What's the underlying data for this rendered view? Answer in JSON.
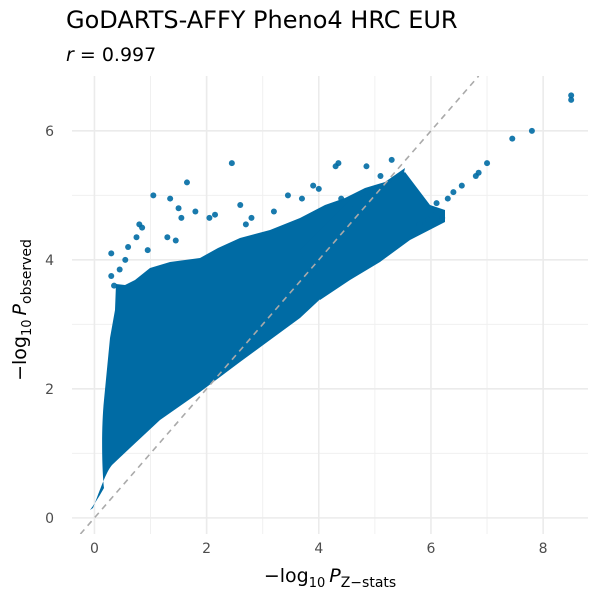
{
  "chart_data": {
    "type": "scatter",
    "title": "GoDARTS-AFFY Pheno4 HRC EUR",
    "subtitle": {
      "var": "r",
      "eq": " = ",
      "value": "0.997"
    },
    "xlabel": {
      "prefix": "−log",
      "base": "10",
      "var": "P",
      "sub": "Z−stats"
    },
    "ylabel": {
      "prefix": "−log",
      "base": "10",
      "var": "P",
      "sub": "observed"
    },
    "xlim": [
      -0.4,
      8.8
    ],
    "ylim": [
      -0.25,
      6.85
    ],
    "x_ticks": [
      0,
      2,
      4,
      6,
      8
    ],
    "y_ticks": [
      0,
      2,
      4,
      6
    ],
    "grid": true,
    "reference_line": {
      "type": "identity",
      "style": "dashed",
      "color": "#aaaaaa"
    },
    "point_color": "#006ba4",
    "series": [
      {
        "values": [
          {
            "x": 8.5,
            "y": 6.55
          },
          {
            "x": 8.5,
            "y": 6.48
          },
          {
            "x": 7.8,
            "y": 6.0
          },
          {
            "x": 7.45,
            "y": 5.88
          },
          {
            "x": 7.0,
            "y": 5.5
          },
          {
            "x": 6.85,
            "y": 5.35
          },
          {
            "x": 6.8,
            "y": 5.3
          },
          {
            "x": 6.55,
            "y": 5.15
          },
          {
            "x": 6.4,
            "y": 5.05
          },
          {
            "x": 6.3,
            "y": 4.95
          },
          {
            "x": 6.1,
            "y": 4.88
          },
          {
            "x": 6.0,
            "y": 4.75
          },
          {
            "x": 6.2,
            "y": 4.65
          },
          {
            "x": 5.95,
            "y": 4.62
          },
          {
            "x": 5.8,
            "y": 4.55
          },
          {
            "x": 2.45,
            "y": 5.5
          },
          {
            "x": 4.35,
            "y": 5.5
          },
          {
            "x": 4.3,
            "y": 5.45
          },
          {
            "x": 5.3,
            "y": 5.55
          },
          {
            "x": 4.85,
            "y": 5.45
          },
          {
            "x": 5.1,
            "y": 5.3
          },
          {
            "x": 1.05,
            "y": 5.0
          },
          {
            "x": 1.65,
            "y": 5.2
          },
          {
            "x": 1.8,
            "y": 4.75
          },
          {
            "x": 1.35,
            "y": 4.95
          },
          {
            "x": 1.5,
            "y": 4.8
          },
          {
            "x": 0.8,
            "y": 4.55
          },
          {
            "x": 0.85,
            "y": 4.5
          },
          {
            "x": 1.55,
            "y": 4.65
          },
          {
            "x": 2.15,
            "y": 4.7
          },
          {
            "x": 2.05,
            "y": 4.65
          },
          {
            "x": 3.45,
            "y": 5.0
          },
          {
            "x": 2.6,
            "y": 4.85
          },
          {
            "x": 3.9,
            "y": 5.15
          },
          {
            "x": 4.0,
            "y": 5.1
          },
          {
            "x": 3.7,
            "y": 4.95
          },
          {
            "x": 4.4,
            "y": 4.95
          },
          {
            "x": 3.2,
            "y": 4.75
          },
          {
            "x": 2.8,
            "y": 4.65
          },
          {
            "x": 4.55,
            "y": 4.85
          },
          {
            "x": 5.0,
            "y": 5.0
          },
          {
            "x": 1.3,
            "y": 4.35
          },
          {
            "x": 1.45,
            "y": 4.3
          },
          {
            "x": 2.7,
            "y": 4.55
          },
          {
            "x": 0.75,
            "y": 4.35
          },
          {
            "x": 0.6,
            "y": 4.2
          },
          {
            "x": 0.3,
            "y": 4.1
          },
          {
            "x": 0.55,
            "y": 4.0
          },
          {
            "x": 0.45,
            "y": 3.85
          },
          {
            "x": 0.95,
            "y": 4.15
          },
          {
            "x": 0.3,
            "y": 3.75
          },
          {
            "x": 0.35,
            "y": 3.6
          }
        ]
      }
    ]
  }
}
